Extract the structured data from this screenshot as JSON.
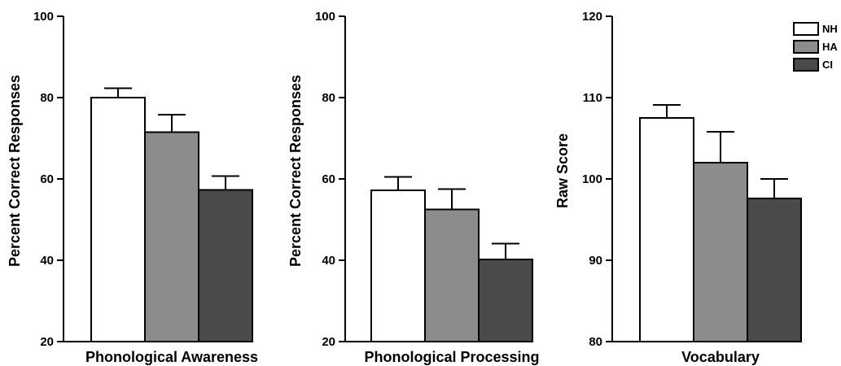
{
  "chart_data": [
    {
      "type": "bar",
      "xlabel": "Phonological Awareness",
      "ylabel": "Percent Correct Responses",
      "ylim": [
        20,
        100
      ],
      "yticks": [
        20,
        40,
        60,
        80,
        100
      ],
      "series": [
        {
          "name": "NH",
          "value": 80.0,
          "error": 2.3
        },
        {
          "name": "HA",
          "value": 71.5,
          "error": 4.3
        },
        {
          "name": "CI",
          "value": 57.3,
          "error": 3.4
        }
      ]
    },
    {
      "type": "bar",
      "xlabel": "Phonological Processing",
      "ylabel": "Percent Correct Responses",
      "ylim": [
        20,
        100
      ],
      "yticks": [
        20,
        40,
        60,
        80,
        100
      ],
      "series": [
        {
          "name": "NH",
          "value": 57.2,
          "error": 3.3
        },
        {
          "name": "HA",
          "value": 52.5,
          "error": 5.0
        },
        {
          "name": "CI",
          "value": 40.2,
          "error": 3.9
        }
      ]
    },
    {
      "type": "bar",
      "xlabel": "Vocabulary",
      "ylabel": "Raw Score",
      "ylim": [
        80,
        120
      ],
      "yticks": [
        80,
        90,
        100,
        110,
        120
      ],
      "series": [
        {
          "name": "NH",
          "value": 107.5,
          "error": 1.6
        },
        {
          "name": "HA",
          "value": 102.0,
          "error": 3.8
        },
        {
          "name": "CI",
          "value": 97.6,
          "error": 2.4
        }
      ]
    }
  ],
  "legend": {
    "position": "top-right",
    "items": [
      {
        "label": "NH",
        "color": "#ffffff"
      },
      {
        "label": "HA",
        "color": "#8c8c8c"
      },
      {
        "label": "CI",
        "color": "#4a4a4a"
      }
    ]
  },
  "colors": {
    "NH": "#ffffff",
    "HA": "#8c8c8c",
    "CI": "#4a4a4a",
    "stroke": "#000000"
  }
}
